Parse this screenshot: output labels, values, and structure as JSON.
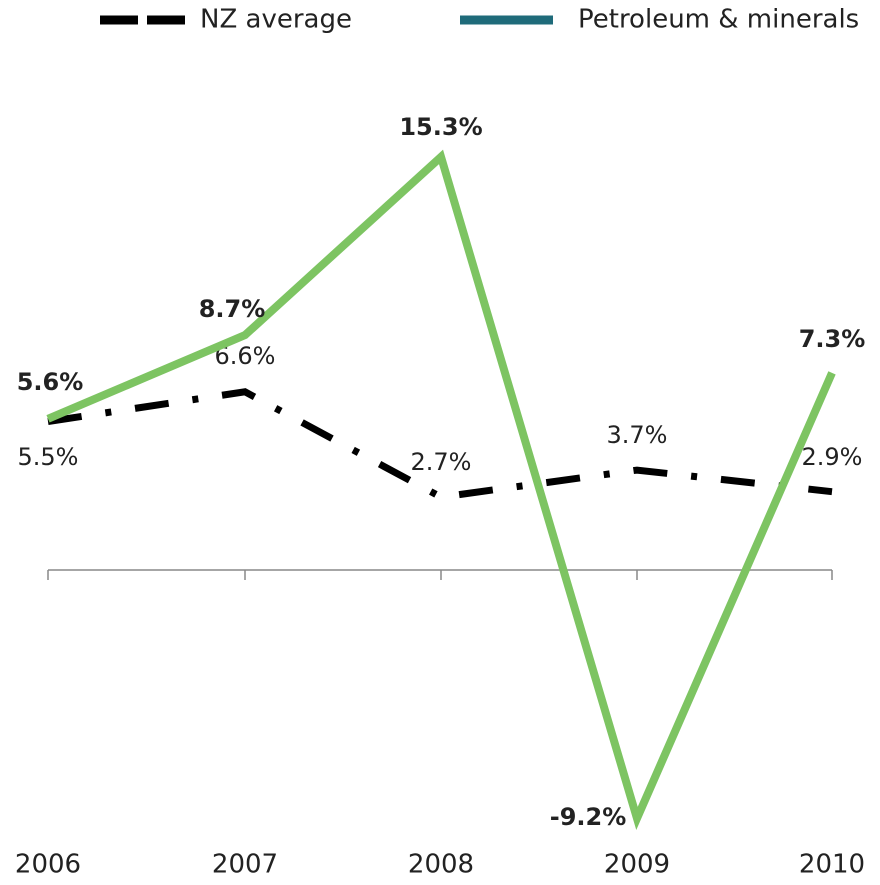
{
  "chart_data": {
    "type": "line",
    "categories": [
      "2006",
      "2007",
      "2008",
      "2009",
      "2010"
    ],
    "series": [
      {
        "name": "NZ average",
        "color": "#000000",
        "dash": true,
        "values": [
          5.5,
          6.6,
          2.7,
          3.7,
          2.9
        ],
        "value_labels": [
          "5.5%",
          "6.6%",
          "2.7%",
          "3.7%",
          "2.9%"
        ]
      },
      {
        "name": "Petroleum & minerals",
        "color": "#7dc462",
        "legend_color": "#1f6b7a",
        "dash": false,
        "values": [
          5.6,
          8.7,
          15.3,
          -9.2,
          7.3
        ],
        "value_labels": [
          "5.6%",
          "8.7%",
          "15.3%",
          "-9.2%",
          "7.3%"
        ]
      }
    ],
    "ylim": [
      -10,
      17
    ],
    "grid": false,
    "legend": "top"
  }
}
